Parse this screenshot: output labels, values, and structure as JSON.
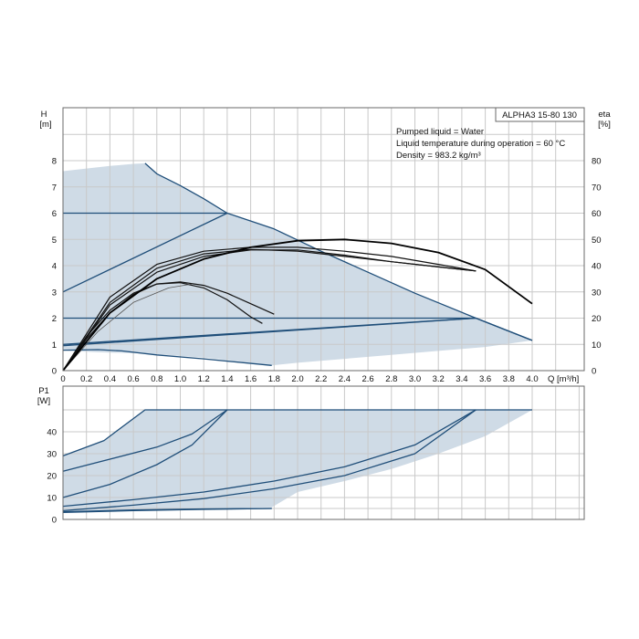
{
  "chart_data": [
    {
      "type": "line",
      "title": "ALPHA3 15-80 130",
      "notes": [
        "Pumped liquid = Water",
        "Liquid temperature during operation = 60 °C",
        "Density = 983.2 kg/m³"
      ],
      "xlabel": "Q [m³/h]",
      "ylabel": [
        "H",
        "[m]"
      ],
      "y2label": [
        "eta",
        "[%]"
      ],
      "xlim": [
        0,
        4.4
      ],
      "ylim": [
        0,
        9
      ],
      "y2lim": [
        0,
        90
      ],
      "xticks": [
        "0",
        "0.2",
        "0.4",
        "0.6",
        "0.8",
        "1.0",
        "1.2",
        "1.4",
        "1.6",
        "1.8",
        "2.0",
        "2.2",
        "2.4",
        "2.6",
        "2.8",
        "3.0",
        "3.2",
        "3.4",
        "3.6",
        "3.8",
        "4.0"
      ],
      "yticks": [
        "0",
        "1",
        "2",
        "3",
        "4",
        "5",
        "6",
        "7",
        "8"
      ],
      "y2ticks": [
        "0",
        "10",
        "20",
        "30",
        "40",
        "50",
        "60",
        "70",
        "80"
      ],
      "grid": true,
      "operating_area": {
        "upper": [
          [
            0,
            7.6
          ],
          [
            0.2,
            7.7
          ],
          [
            0.4,
            7.8
          ],
          [
            0.6,
            7.88
          ],
          [
            0.7,
            7.9
          ],
          [
            0.8,
            7.5
          ],
          [
            1.0,
            7.05
          ],
          [
            1.2,
            6.55
          ],
          [
            1.4,
            6.0
          ],
          [
            1.8,
            5.4
          ],
          [
            2.2,
            4.55
          ],
          [
            2.6,
            3.75
          ],
          [
            3.0,
            2.95
          ],
          [
            3.52,
            2.0
          ],
          [
            4.0,
            1.15
          ]
        ],
        "lower": [
          [
            4.0,
            1.15
          ],
          [
            3.6,
            0.9
          ],
          [
            3.2,
            0.75
          ],
          [
            2.8,
            0.6
          ],
          [
            2.4,
            0.45
          ],
          [
            2.0,
            0.3
          ],
          [
            1.78,
            0.2
          ],
          [
            1.5,
            0.35
          ],
          [
            1.2,
            0.5
          ],
          [
            0.7,
            0.65
          ],
          [
            0.3,
            0.7
          ],
          [
            0.05,
            0.75
          ],
          [
            0,
            0.78
          ]
        ]
      },
      "series": [
        {
          "style": "setting",
          "points": [
            [
              0,
              6.0
            ],
            [
              1.4,
              6.0
            ]
          ]
        },
        {
          "style": "setting",
          "points": [
            [
              0,
              2.0
            ],
            [
              3.52,
              2.0
            ]
          ]
        },
        {
          "style": "setting",
          "points": [
            [
              0,
              3.0
            ],
            [
              1.4,
              6.0
            ]
          ]
        },
        {
          "style": "setting",
          "points": [
            [
              0,
              0.95
            ],
            [
              3.52,
              2.0
            ]
          ]
        },
        {
          "style": "setting",
          "points": [
            [
              0.7,
              7.9
            ],
            [
              0.8,
              7.5
            ],
            [
              1.0,
              7.05
            ],
            [
              1.2,
              6.55
            ],
            [
              1.4,
              6.0
            ],
            [
              1.8,
              5.4
            ],
            [
              2.2,
              4.55
            ],
            [
              2.6,
              3.75
            ],
            [
              3.0,
              2.95
            ],
            [
              3.52,
              2.0
            ],
            [
              4.0,
              1.15
            ]
          ]
        },
        {
          "style": "setting",
          "points": [
            [
              0,
              0.78
            ],
            [
              0.3,
              0.8
            ],
            [
              0.5,
              0.75
            ],
            [
              0.8,
              0.6
            ],
            [
              1.2,
              0.45
            ],
            [
              1.78,
              0.2
            ]
          ]
        },
        {
          "style": "setting",
          "points": [
            [
              0,
              1.0
            ],
            [
              3.52,
              2.0
            ],
            [
              4.0,
              1.15
            ]
          ]
        },
        {
          "style": "eta",
          "points": [
            [
              0,
              0
            ],
            [
              0.2,
              1.2
            ],
            [
              0.4,
              2.2
            ],
            [
              0.6,
              2.9
            ],
            [
              0.8,
              3.3
            ],
            [
              1.0,
              3.35
            ],
            [
              1.2,
              3.15
            ],
            [
              1.4,
              2.7
            ],
            [
              1.6,
              2.05
            ],
            [
              1.7,
              1.8
            ]
          ]
        },
        {
          "style": "eta",
          "points": [
            [
              0,
              0
            ],
            [
              0.2,
              1.3
            ],
            [
              0.4,
              2.3
            ],
            [
              0.6,
              2.95
            ],
            [
              0.8,
              3.3
            ],
            [
              1.0,
              3.38
            ],
            [
              1.2,
              3.25
            ],
            [
              1.4,
              2.95
            ],
            [
              1.6,
              2.55
            ],
            [
              1.8,
              2.15
            ]
          ]
        },
        {
          "style": "eta-thin",
          "points": [
            [
              0,
              0
            ],
            [
              0.3,
              1.5
            ],
            [
              0.6,
              2.6
            ],
            [
              0.9,
              3.15
            ],
            [
              1.1,
              3.3
            ]
          ]
        },
        {
          "style": "eta",
          "points": [
            [
              0,
              0
            ],
            [
              0.4,
              2.6
            ],
            [
              0.8,
              3.9
            ],
            [
              1.2,
              4.45
            ],
            [
              1.6,
              4.62
            ],
            [
              2.0,
              4.55
            ],
            [
              2.4,
              4.35
            ],
            [
              2.8,
              4.15
            ],
            [
              3.2,
              3.95
            ],
            [
              3.52,
              3.8
            ]
          ]
        },
        {
          "style": "eta",
          "points": [
            [
              0,
              0
            ],
            [
              0.4,
              2.8
            ],
            [
              0.8,
              4.05
            ],
            [
              1.2,
              4.55
            ],
            [
              1.6,
              4.7
            ],
            [
              2.0,
              4.7
            ],
            [
              2.4,
              4.55
            ],
            [
              2.8,
              4.35
            ],
            [
              3.2,
              4.05
            ],
            [
              3.52,
              3.8
            ]
          ]
        },
        {
          "style": "eta",
          "points": [
            [
              0,
              0
            ],
            [
              0.4,
              2.5
            ],
            [
              0.8,
              3.75
            ],
            [
              1.2,
              4.35
            ],
            [
              1.6,
              4.6
            ],
            [
              2.0,
              4.6
            ],
            [
              2.4,
              4.4
            ],
            [
              2.8,
              4.15
            ],
            [
              3.2,
              3.95
            ],
            [
              3.52,
              3.8
            ]
          ]
        },
        {
          "style": "eta-bold",
          "points": [
            [
              0,
              0
            ],
            [
              0.4,
              2.2
            ],
            [
              0.8,
              3.5
            ],
            [
              1.2,
              4.25
            ],
            [
              1.6,
              4.7
            ],
            [
              2.0,
              4.95
            ],
            [
              2.4,
              5.0
            ],
            [
              2.8,
              4.85
            ],
            [
              3.2,
              4.5
            ],
            [
              3.6,
              3.85
            ],
            [
              4.0,
              2.55
            ]
          ]
        }
      ]
    },
    {
      "type": "line",
      "xlabel": "",
      "ylabel": [
        "P1",
        "[W]"
      ],
      "xlim": [
        0,
        4.4
      ],
      "ylim": [
        0,
        50
      ],
      "yticks": [
        "0",
        "10",
        "20",
        "30",
        "40"
      ],
      "grid": true,
      "operating_area": {
        "upper": [
          [
            0,
            29
          ],
          [
            0.35,
            36
          ],
          [
            0.7,
            50
          ],
          [
            4.0,
            50
          ]
        ],
        "lower": [
          [
            4.0,
            50
          ],
          [
            3.6,
            38
          ],
          [
            3.2,
            30
          ],
          [
            2.8,
            23
          ],
          [
            2.4,
            17.5
          ],
          [
            2.0,
            12.5
          ],
          [
            1.78,
            5.5
          ],
          [
            0,
            3.5
          ]
        ]
      },
      "series": [
        {
          "style": "setting",
          "points": [
            [
              0,
              29
            ],
            [
              0.35,
              36
            ],
            [
              0.7,
              50
            ],
            [
              4.0,
              50
            ]
          ]
        },
        {
          "style": "setting",
          "points": [
            [
              0,
              22
            ],
            [
              0.4,
              27.5
            ],
            [
              0.8,
              33
            ],
            [
              1.1,
              39
            ],
            [
              1.4,
              50
            ]
          ]
        },
        {
          "style": "setting",
          "points": [
            [
              0,
              10
            ],
            [
              0.4,
              16
            ],
            [
              0.8,
              25
            ],
            [
              1.1,
              34
            ],
            [
              1.4,
              50
            ]
          ]
        },
        {
          "style": "setting",
          "points": [
            [
              0,
              6
            ],
            [
              0.6,
              9
            ],
            [
              1.2,
              12.5
            ],
            [
              1.8,
              17.5
            ],
            [
              2.4,
              24
            ],
            [
              3.0,
              34
            ],
            [
              3.52,
              50
            ]
          ]
        },
        {
          "style": "setting",
          "points": [
            [
              0,
              4
            ],
            [
              0.6,
              6.5
            ],
            [
              1.2,
              9.5
            ],
            [
              1.8,
              14
            ],
            [
              2.4,
              20
            ],
            [
              3.0,
              30
            ],
            [
              3.52,
              50
            ]
          ]
        },
        {
          "style": "setting",
          "points": [
            [
              0,
              3.5
            ],
            [
              0.6,
              4.3
            ],
            [
              1.2,
              4.8
            ],
            [
              1.78,
              5
            ]
          ]
        },
        {
          "style": "setting",
          "points": [
            [
              0,
              3.2
            ],
            [
              0.6,
              4.0
            ],
            [
              1.2,
              4.6
            ],
            [
              1.78,
              5
            ]
          ]
        }
      ]
    }
  ]
}
